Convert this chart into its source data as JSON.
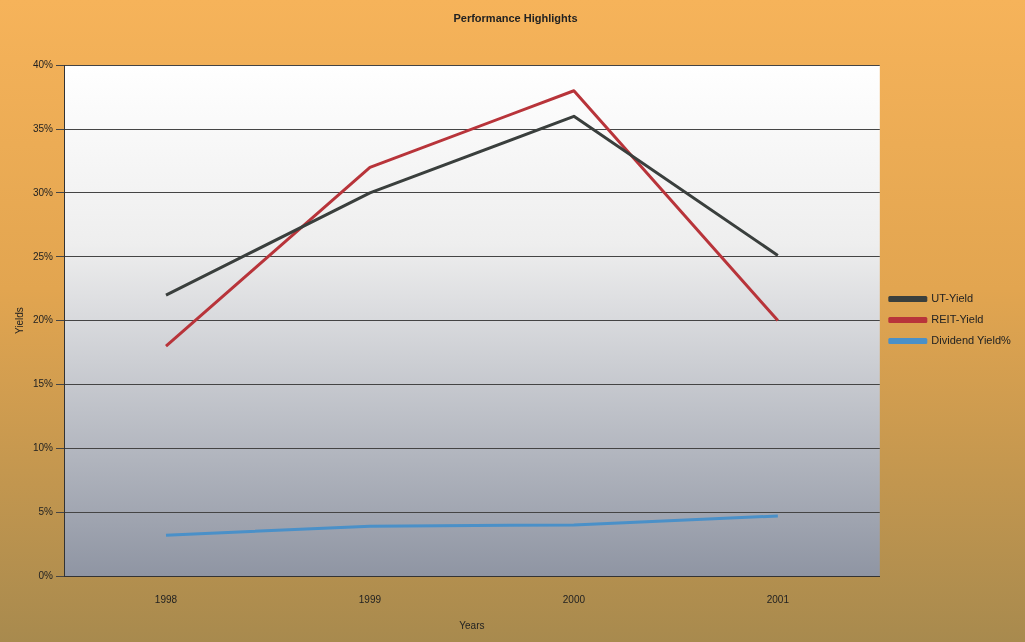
{
  "chart_data": {
    "type": "line",
    "title": "Performance Highlights",
    "xlabel": "Years",
    "ylabel": "Yields",
    "categories": [
      "1998",
      "1999",
      "2000",
      "2001"
    ],
    "series": [
      {
        "name": "UT-Yield",
        "color": "#3a3f3d",
        "values": [
          22,
          30,
          36,
          25.1
        ]
      },
      {
        "name": "REIT-Yield",
        "color": "#b8343a",
        "values": [
          18,
          32,
          38,
          20
        ]
      },
      {
        "name": "Dividend Yield%",
        "color": "#4a90c8",
        "values": [
          3.2,
          3.9,
          4,
          4.7
        ]
      }
    ],
    "ylim": [
      0,
      40
    ],
    "yticks": [
      {
        "value": 0,
        "label": "0%"
      },
      {
        "value": 5,
        "label": "5%"
      },
      {
        "value": 10,
        "label": "10%"
      },
      {
        "value": 15,
        "label": "15%"
      },
      {
        "value": 20,
        "label": "20%"
      },
      {
        "value": 25,
        "label": "25%"
      },
      {
        "value": 30,
        "label": "30%"
      },
      {
        "value": 35,
        "label": "35%"
      },
      {
        "value": 40,
        "label": "40%"
      }
    ],
    "grid": "y",
    "legend": "right",
    "marker": "none",
    "line_style": "solid"
  }
}
